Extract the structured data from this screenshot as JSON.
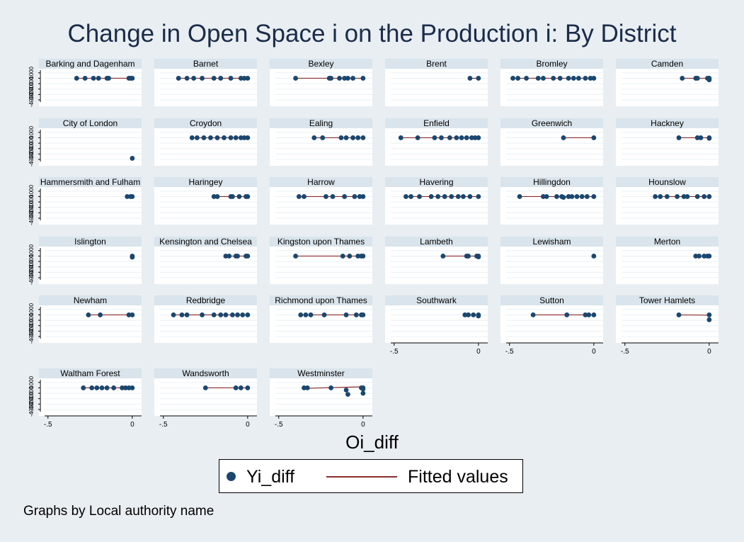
{
  "title": "Change in Open Space i on the Production i: By District",
  "note": "Graphs by Local authority name",
  "legend": {
    "series1": "Yi_diff",
    "series2": "Fitted values"
  },
  "colors": {
    "marker": "#1a476f",
    "fit_line": "#8b2b2b",
    "panel_header": "#d9e4ec",
    "background": "#e9eef2"
  },
  "chart_data": {
    "type": "scatter",
    "title": "Change in Open Space i on the Production i: By District",
    "xlabel": "Oi_diff",
    "ylabel": "",
    "x_ticks": [
      "-.5",
      "0"
    ],
    "x_tick_values": [
      -0.5,
      0
    ],
    "y_tick_labels": [
      "-4000",
      "-3000",
      "-2000",
      "-1000",
      "0",
      "1000"
    ],
    "y_tick_values": [
      -4000,
      -3000,
      -2000,
      -1000,
      0,
      1000
    ],
    "xlim": [
      -0.52,
      0.03
    ],
    "ylim": [
      -4400,
      1500
    ],
    "grid": true,
    "legend_position": "bottom",
    "panels": [
      {
        "name": "Barking and Dagenham",
        "x": [
          -0.33,
          -0.28,
          -0.23,
          -0.2,
          -0.15,
          -0.14,
          -0.02,
          -0.01,
          0
        ],
        "y": [
          0,
          0,
          0,
          0,
          0,
          0,
          0,
          0,
          0
        ],
        "fit": [
          0,
          0
        ]
      },
      {
        "name": "Barnet",
        "x": [
          -0.41,
          -0.36,
          -0.32,
          -0.27,
          -0.2,
          -0.16,
          -0.1,
          -0.04,
          -0.02,
          0
        ],
        "y": [
          0,
          0,
          0,
          0,
          0,
          0,
          0,
          0,
          0,
          0
        ],
        "fit": [
          0,
          0
        ]
      },
      {
        "name": "Bexley",
        "x": [
          -0.4,
          -0.2,
          -0.19,
          -0.14,
          -0.11,
          -0.09,
          -0.06,
          0
        ],
        "y": [
          0,
          0,
          0,
          0,
          0,
          0,
          0,
          0
        ],
        "fit": [
          0,
          0
        ]
      },
      {
        "name": "Brent",
        "x": [
          -0.05,
          0
        ],
        "y": [
          0,
          0
        ],
        "fit": [
          0,
          0
        ]
      },
      {
        "name": "Bromley",
        "x": [
          -0.48,
          -0.45,
          -0.4,
          -0.33,
          -0.3,
          -0.24,
          -0.2,
          -0.15,
          -0.12,
          -0.09,
          -0.05,
          -0.02,
          0
        ],
        "y": [
          0,
          0,
          0,
          0,
          0,
          0,
          0,
          0,
          0,
          0,
          0,
          0,
          0
        ],
        "fit": [
          0,
          0
        ]
      },
      {
        "name": "Camden",
        "x": [
          -0.16,
          -0.08,
          -0.07,
          -0.01,
          0,
          0
        ],
        "y": [
          0,
          0,
          0,
          0,
          -300,
          0
        ],
        "fit": [
          0,
          0
        ]
      },
      {
        "name": "City of London",
        "x": [
          0
        ],
        "y": [
          -3800
        ],
        "fit": null
      },
      {
        "name": "Croydon",
        "x": [
          -0.33,
          -0.3,
          -0.26,
          -0.22,
          -0.18,
          -0.14,
          -0.1,
          -0.07,
          -0.04,
          -0.02,
          0
        ],
        "y": [
          0,
          0,
          0,
          0,
          0,
          0,
          0,
          0,
          0,
          0,
          0
        ],
        "fit": [
          0,
          0
        ]
      },
      {
        "name": "Ealing",
        "x": [
          -0.29,
          -0.24,
          -0.13,
          -0.1,
          -0.06,
          -0.03,
          0
        ],
        "y": [
          0,
          0,
          0,
          0,
          0,
          0,
          0
        ],
        "fit": [
          0,
          0
        ]
      },
      {
        "name": "Enfield",
        "x": [
          -0.46,
          -0.36,
          -0.26,
          -0.22,
          -0.17,
          -0.13,
          -0.1,
          -0.07,
          -0.04,
          -0.02,
          0
        ],
        "y": [
          0,
          0,
          0,
          0,
          0,
          0,
          0,
          0,
          0,
          0,
          0
        ],
        "fit": [
          0,
          0
        ]
      },
      {
        "name": "Greenwich",
        "x": [
          -0.18,
          0
        ],
        "y": [
          0,
          0
        ],
        "fit": [
          0,
          0
        ]
      },
      {
        "name": "Hackney",
        "x": [
          -0.18,
          -0.07,
          -0.05,
          0,
          0
        ],
        "y": [
          0,
          0,
          0,
          0,
          -100
        ],
        "fit": [
          0,
          0
        ]
      },
      {
        "name": "Hammersmith and Fulham",
        "x": [
          -0.03,
          -0.01,
          0
        ],
        "y": [
          0,
          0,
          0
        ],
        "fit": [
          0,
          0
        ]
      },
      {
        "name": "Haringey",
        "x": [
          -0.2,
          -0.18,
          -0.1,
          -0.09,
          -0.05,
          -0.01,
          0
        ],
        "y": [
          0,
          0,
          0,
          0,
          0,
          0,
          0
        ],
        "fit": [
          0,
          0
        ]
      },
      {
        "name": "Harrow",
        "x": [
          -0.38,
          -0.35,
          -0.22,
          -0.18,
          -0.11,
          -0.05,
          -0.02,
          0
        ],
        "y": [
          0,
          0,
          0,
          0,
          0,
          0,
          0,
          0
        ],
        "fit": [
          0,
          0
        ]
      },
      {
        "name": "Havering",
        "x": [
          -0.43,
          -0.4,
          -0.35,
          -0.28,
          -0.24,
          -0.2,
          -0.16,
          -0.12,
          -0.09,
          -0.05,
          0
        ],
        "y": [
          0,
          0,
          0,
          0,
          0,
          0,
          0,
          0,
          0,
          0,
          0
        ],
        "fit": [
          0,
          0
        ]
      },
      {
        "name": "Hillingdon",
        "x": [
          -0.44,
          -0.3,
          -0.28,
          -0.22,
          -0.19,
          -0.15,
          -0.18,
          -0.13,
          -0.1,
          -0.07,
          -0.04,
          0
        ],
        "y": [
          0,
          0,
          0,
          0,
          0,
          0,
          -150,
          0,
          0,
          0,
          0,
          0
        ],
        "fit": [
          0,
          0
        ]
      },
      {
        "name": "Hounslow",
        "x": [
          -0.32,
          -0.29,
          -0.25,
          -0.19,
          -0.15,
          -0.13,
          -0.07,
          -0.03,
          0
        ],
        "y": [
          0,
          0,
          0,
          0,
          0,
          0,
          0,
          0,
          0
        ],
        "fit": [
          0,
          0
        ]
      },
      {
        "name": "Islington",
        "x": [
          0,
          0
        ],
        "y": [
          0,
          -200
        ],
        "fit": null
      },
      {
        "name": "Kensington and Chelsea",
        "x": [
          -0.13,
          -0.11,
          -0.07,
          -0.06,
          -0.01,
          0
        ],
        "y": [
          0,
          0,
          0,
          0,
          0,
          0
        ],
        "fit": [
          0,
          0
        ]
      },
      {
        "name": "Kingston upon Thames",
        "x": [
          -0.4,
          -0.12,
          -0.08,
          -0.03,
          -0.01,
          0
        ],
        "y": [
          0,
          0,
          0,
          0,
          0,
          0
        ],
        "fit": [
          0,
          0
        ]
      },
      {
        "name": "Lambeth",
        "x": [
          -0.21,
          -0.07,
          -0.06,
          -0.01,
          0,
          0
        ],
        "y": [
          0,
          0,
          0,
          0,
          0,
          -150
        ],
        "fit": [
          0,
          0
        ]
      },
      {
        "name": "Lewisham",
        "x": [
          0
        ],
        "y": [
          0
        ],
        "fit": null
      },
      {
        "name": "Merton",
        "x": [
          -0.08,
          -0.06,
          -0.03,
          -0.01,
          0
        ],
        "y": [
          0,
          0,
          0,
          0,
          0
        ],
        "fit": [
          0,
          0
        ]
      },
      {
        "name": "Newham",
        "x": [
          -0.26,
          -0.19,
          -0.02,
          0
        ],
        "y": [
          0,
          0,
          0,
          0
        ],
        "fit": [
          0,
          0
        ]
      },
      {
        "name": "Redbridge",
        "x": [
          -0.44,
          -0.39,
          -0.36,
          -0.27,
          -0.2,
          -0.16,
          -0.13,
          -0.09,
          -0.06,
          -0.03,
          0
        ],
        "y": [
          0,
          0,
          0,
          0,
          0,
          0,
          0,
          0,
          0,
          0,
          0
        ],
        "fit": [
          0,
          0
        ]
      },
      {
        "name": "Richmond upon Thames",
        "x": [
          -0.37,
          -0.34,
          -0.31,
          -0.23,
          -0.1,
          -0.04,
          -0.01,
          0
        ],
        "y": [
          0,
          0,
          0,
          0,
          0,
          0,
          0,
          0
        ],
        "fit": [
          0,
          0
        ]
      },
      {
        "name": "Southwark",
        "x": [
          -0.08,
          -0.06,
          -0.03,
          0,
          0
        ],
        "y": [
          0,
          0,
          0,
          0,
          -200
        ],
        "fit": [
          0,
          0
        ]
      },
      {
        "name": "Sutton",
        "x": [
          -0.36,
          -0.16,
          -0.05,
          -0.03,
          0
        ],
        "y": [
          0,
          0,
          0,
          0,
          0
        ],
        "fit": [
          0,
          0
        ]
      },
      {
        "name": "Tower Hamlets",
        "x": [
          -0.18,
          0,
          0
        ],
        "y": [
          0,
          0,
          -900
        ],
        "fit": [
          0,
          -50
        ]
      },
      {
        "name": "Waltham Forest",
        "x": [
          -0.29,
          -0.24,
          -0.21,
          -0.18,
          -0.15,
          -0.11,
          -0.06,
          -0.04,
          -0.02,
          0
        ],
        "y": [
          0,
          0,
          0,
          0,
          0,
          0,
          0,
          0,
          0,
          0
        ],
        "fit": [
          0,
          0
        ]
      },
      {
        "name": "Wandsworth",
        "x": [
          -0.25,
          -0.07,
          -0.04,
          0
        ],
        "y": [
          0,
          0,
          0,
          0
        ],
        "fit": [
          0,
          0
        ]
      },
      {
        "name": "Westminster",
        "x": [
          -0.35,
          -0.33,
          -0.19,
          -0.1,
          -0.09,
          -0.01,
          0,
          0,
          0
        ],
        "y": [
          0,
          0,
          0,
          -400,
          -1200,
          0,
          -200,
          0,
          -1000
        ],
        "fit": [
          -100,
          200
        ]
      }
    ]
  }
}
